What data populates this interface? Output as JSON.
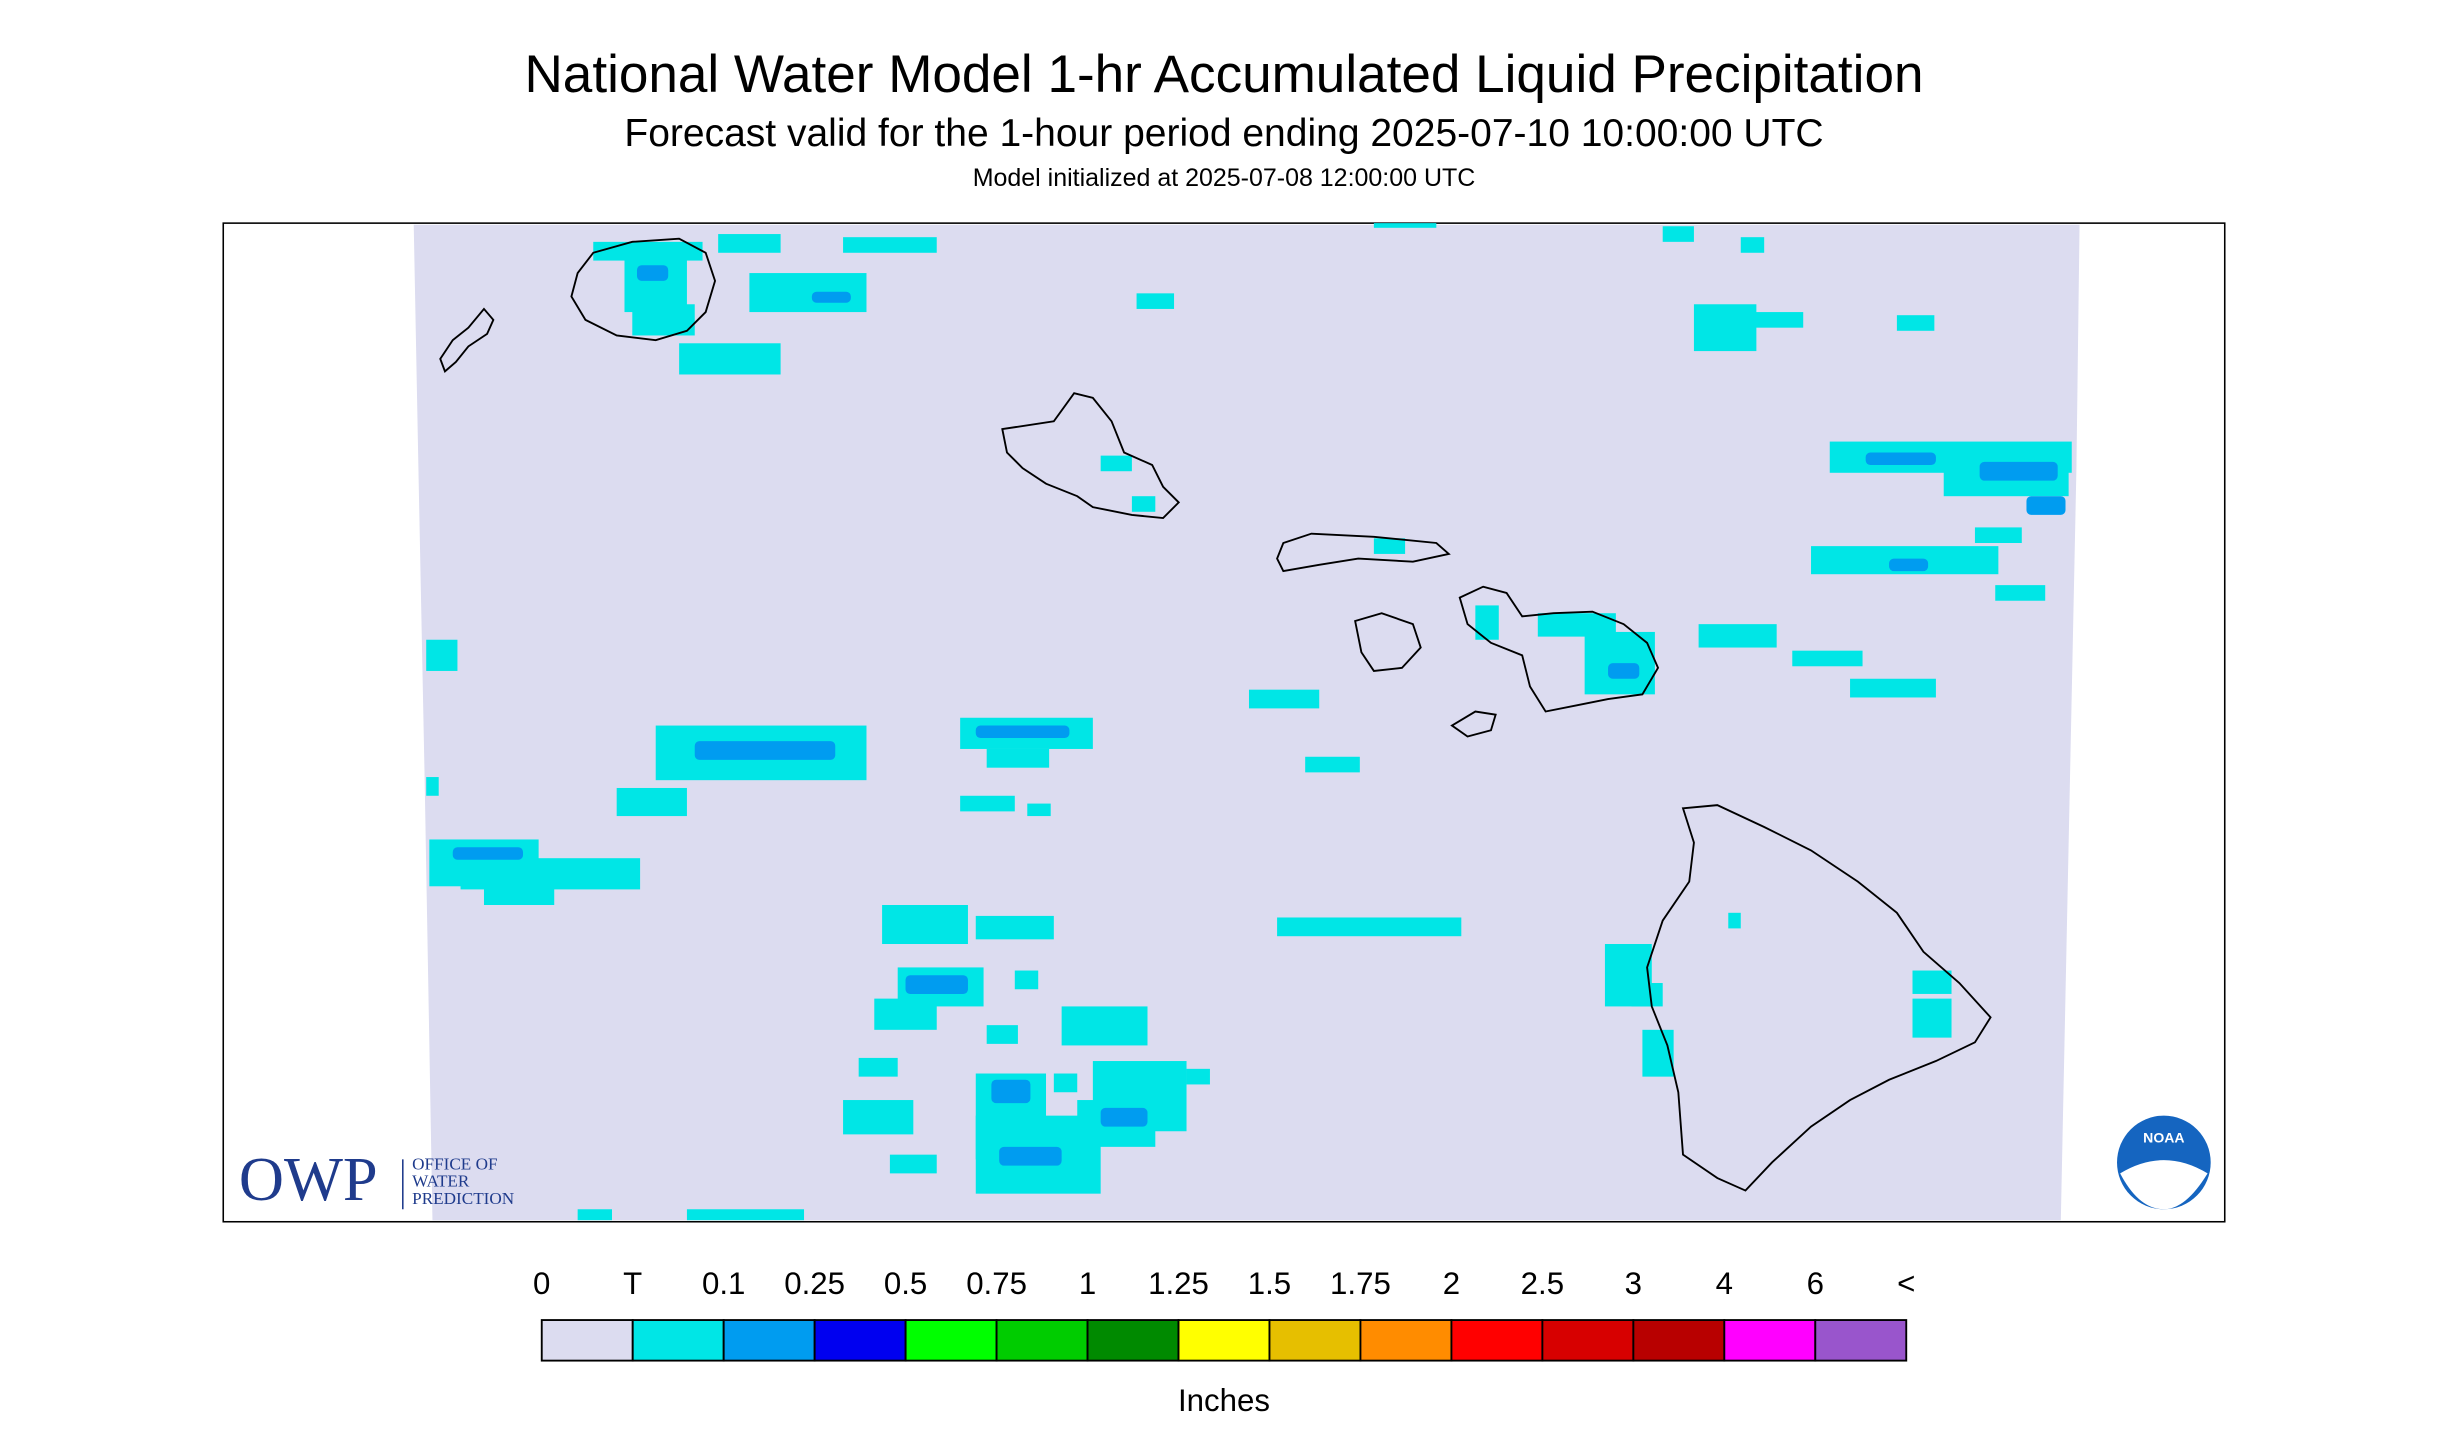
{
  "header": {
    "title": "National Water Model 1-hr Accumulated Liquid Precipitation",
    "subtitle": "Forecast valid for the 1-hour period ending 2025-07-10 10:00:00 UTC",
    "note": "Model initialized at 2025-07-08 12:00:00 UTC"
  },
  "legend": {
    "labels": [
      "0",
      "T",
      "0.1",
      "0.25",
      "0.5",
      "0.75",
      "1",
      "1.25",
      "1.5",
      "1.75",
      "2",
      "2.5",
      "3",
      "4",
      "6",
      "<"
    ],
    "colors": [
      "#dcdcf0",
      "#00e6e6",
      "#009cf0",
      "#0000f0",
      "#00ff00",
      "#00cc00",
      "#008a00",
      "#ffff00",
      "#e6bf00",
      "#ff8c00",
      "#ff0000",
      "#d70000",
      "#b80000",
      "#ff00ff",
      "#9955cc"
    ],
    "unit": "Inches"
  },
  "logos": {
    "owp": "OWP",
    "owp_lines": [
      "OFFICE OF",
      "WATER",
      "PREDICTION"
    ],
    "noaa": "NOAA"
  }
}
